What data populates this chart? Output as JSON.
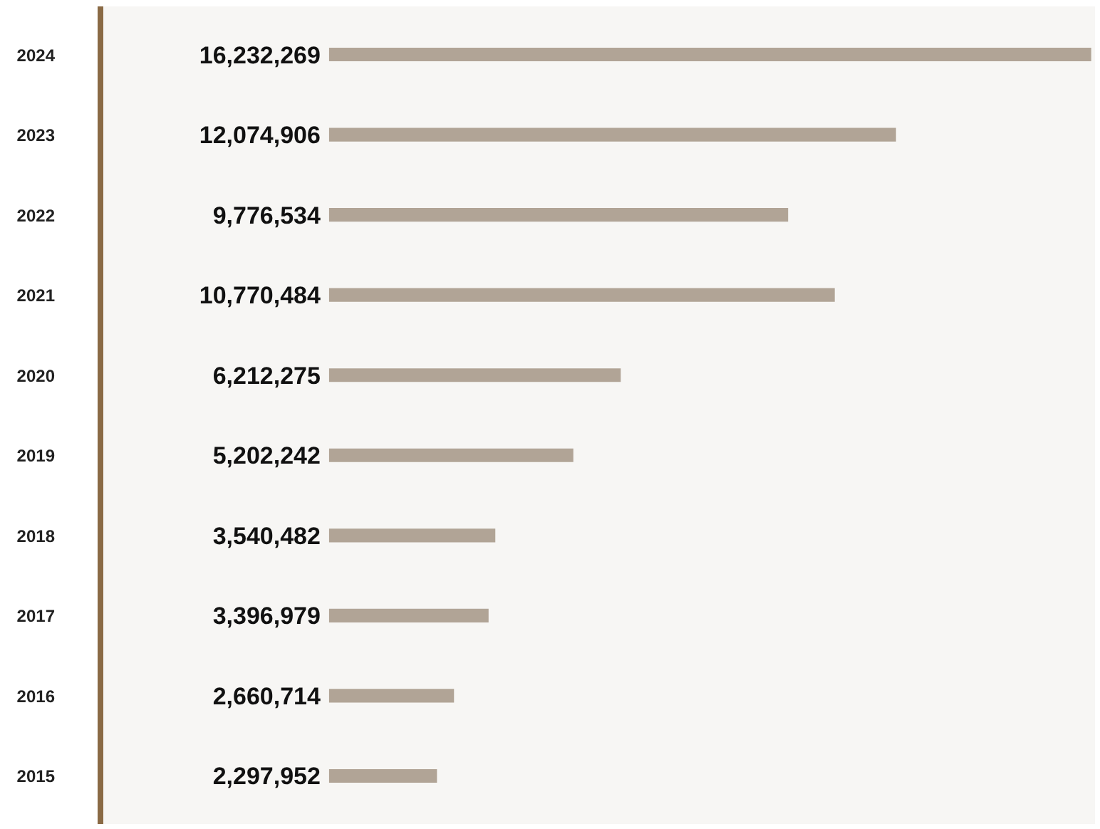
{
  "chart_data": {
    "type": "bar",
    "orientation": "horizontal",
    "categories": [
      "2024",
      "2023",
      "2022",
      "2021",
      "2020",
      "2019",
      "2018",
      "2017",
      "2016",
      "2015"
    ],
    "values": [
      16232269,
      12074906,
      9776534,
      10770484,
      6212275,
      5202242,
      3540482,
      3396979,
      2660714,
      2297952
    ],
    "value_labels": [
      "16,232,269",
      "12,074,906",
      "9,776,534",
      "10,770,484",
      "6,212,275",
      "5,202,242",
      "3,540,482",
      "3,396,979",
      "2,660,714",
      "2,297,952"
    ],
    "color": "#b1a496",
    "grid": false,
    "tick_labels": "y"
  }
}
